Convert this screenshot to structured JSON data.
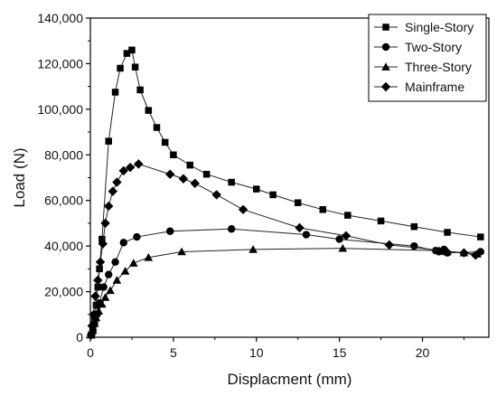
{
  "chart_data": {
    "type": "line",
    "title": "",
    "xlabel": "Displacment (mm)",
    "ylabel": "Load (N)",
    "xlim": [
      0,
      24
    ],
    "ylim": [
      0,
      140000
    ],
    "xticks": [
      0,
      5,
      10,
      15,
      20
    ],
    "xtick_labels": [
      "0",
      "5",
      "10",
      "15",
      "20"
    ],
    "yticks": [
      0,
      20000,
      40000,
      60000,
      80000,
      100000,
      120000,
      140000
    ],
    "ytick_labels": [
      "0",
      "20,000",
      "40,000",
      "60,000",
      "80,000",
      "100,000",
      "120,000",
      "140,000"
    ],
    "grid": false,
    "legend_position": "top-right",
    "series": [
      {
        "name": "Single-Story",
        "marker": "square",
        "x": [
          0.05,
          0.15,
          0.25,
          0.35,
          0.45,
          0.55,
          0.7,
          1.1,
          1.5,
          1.8,
          2.2,
          2.5,
          2.7,
          3.0,
          3.5,
          4.0,
          4.5,
          5.0,
          6.0,
          7.0,
          8.5,
          10.0,
          11.0,
          12.5,
          14.0,
          15.5,
          17.5,
          19.5,
          21.5,
          23.5
        ],
        "y": [
          1000,
          4000,
          8000,
          14000,
          22000,
          30000,
          43000,
          86000,
          107500,
          118000,
          124500,
          126000,
          118500,
          108500,
          99500,
          92000,
          85500,
          80000,
          75500,
          71500,
          68000,
          65000,
          62500,
          59000,
          56000,
          53500,
          51000,
          48500,
          46000,
          44000
        ]
      },
      {
        "name": "Two-Story",
        "marker": "circle",
        "x": [
          0.05,
          0.15,
          0.25,
          0.4,
          0.55,
          0.8,
          1.1,
          1.5,
          2.0,
          2.8,
          4.8,
          8.5,
          13.0,
          15.0,
          19.5,
          20.8,
          21.0,
          21.3,
          21.5,
          23.5
        ],
        "y": [
          1000,
          3000,
          6000,
          10000,
          15000,
          22000,
          27500,
          33000,
          41500,
          44000,
          46500,
          47500,
          45000,
          43000,
          40000,
          38000,
          37500,
          38500,
          37000,
          37500
        ]
      },
      {
        "name": "Three-Story",
        "marker": "triangle",
        "x": [
          0.05,
          0.15,
          0.25,
          0.35,
          0.5,
          0.7,
          0.9,
          1.2,
          1.6,
          2.1,
          2.6,
          3.5,
          5.5,
          9.8,
          15.2,
          21.0,
          21.5,
          22.5,
          23.3
        ],
        "y": [
          1000,
          3000,
          6000,
          8500,
          11500,
          14500,
          17500,
          20500,
          25000,
          29000,
          32500,
          35000,
          37500,
          38500,
          39000,
          38000,
          37500,
          37000,
          36500
        ]
      },
      {
        "name": "Mainframe",
        "marker": "diamond",
        "x": [
          0.05,
          0.1,
          0.2,
          0.3,
          0.45,
          0.6,
          0.75,
          0.9,
          1.1,
          1.35,
          1.6,
          2.0,
          2.4,
          2.9,
          4.8,
          5.6,
          6.3,
          7.6,
          9.2,
          12.6,
          15.4,
          18.0,
          21.2,
          22.5,
          23.2
        ],
        "y": [
          1000,
          5000,
          10000,
          18000,
          25000,
          33000,
          41000,
          50000,
          57500,
          64000,
          68000,
          73000,
          74500,
          76000,
          71500,
          69500,
          67500,
          62500,
          56000,
          48000,
          44500,
          40500,
          38000,
          37000,
          36000
        ]
      }
    ]
  }
}
